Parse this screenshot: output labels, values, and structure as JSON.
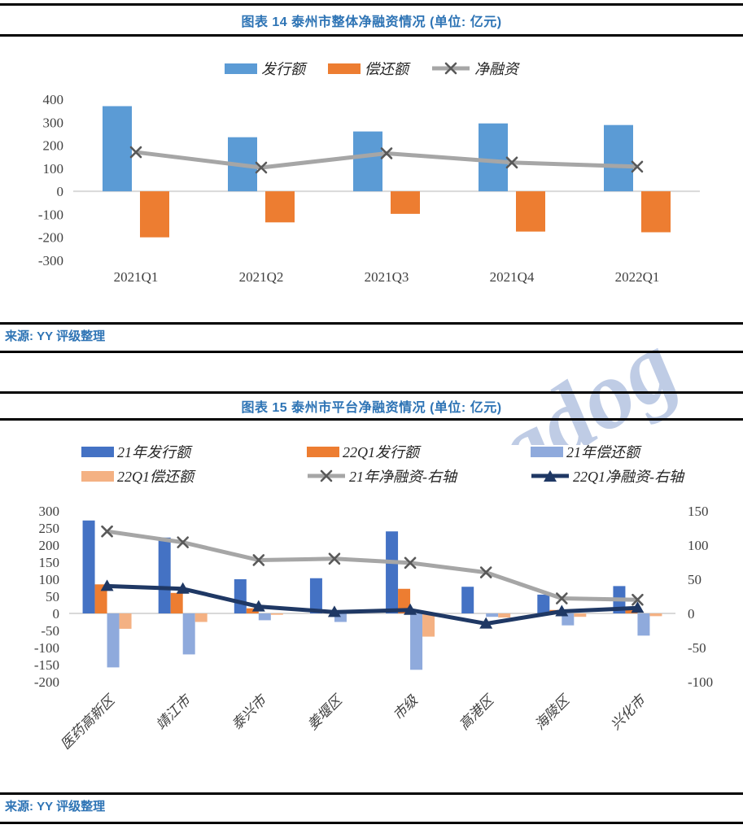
{
  "page": {
    "watermark": "Ratingdog",
    "footers": [
      "来源: YY 评级整理",
      "来源: YY 评级整理"
    ],
    "colors": {
      "title_blue": "#2E74B5",
      "rule_black": "#000000",
      "zero_line": "#D9D9D9",
      "axis_text": "#404040",
      "watermark_blue": "#A9BBDC"
    }
  },
  "chart_data": [
    {
      "id": "chart14",
      "type": "bar",
      "title": "图表 14 泰州市整体净融资情况 (单位: 亿元)",
      "legend_position": "top",
      "grid": false,
      "categories": [
        "2021Q1",
        "2021Q2",
        "2021Q3",
        "2021Q4",
        "2022Q1"
      ],
      "left_axis": {
        "min": -300,
        "max": 400,
        "step": 100
      },
      "series": [
        {
          "name": "发行额",
          "type": "bar",
          "axis": "left",
          "color": "#5B9BD5",
          "values": [
            370,
            235,
            260,
            295,
            288
          ]
        },
        {
          "name": "偿还额",
          "type": "bar",
          "axis": "left",
          "color": "#ED7D31",
          "values": [
            -200,
            -135,
            -98,
            -175,
            -178
          ]
        },
        {
          "name": "净融资",
          "type": "line",
          "axis": "left",
          "color": "#A6A6A6",
          "marker": "x",
          "marker_color": "#595959",
          "values": [
            170,
            103,
            165,
            125,
            107
          ]
        }
      ]
    },
    {
      "id": "chart15",
      "type": "bar",
      "title": "图表 15 泰州市平台净融资情况 (单位: 亿元)",
      "legend_position": "top",
      "grid": false,
      "categories": [
        "医药高新区",
        "靖江市",
        "泰兴市",
        "姜堰区",
        "市级",
        "高港区",
        "海陵区",
        "兴化市"
      ],
      "left_axis": {
        "min": -200,
        "max": 300,
        "step": 50
      },
      "right_axis": {
        "min": -100,
        "max": 150,
        "step": 50
      },
      "series": [
        {
          "name": "21年发行额",
          "type": "bar",
          "axis": "left",
          "color": "#4472C4",
          "values": [
            272,
            222,
            100,
            103,
            240,
            78,
            55,
            80
          ]
        },
        {
          "name": "22Q1发行额",
          "type": "bar",
          "axis": "left",
          "color": "#ED7D31",
          "values": [
            85,
            60,
            15,
            0,
            72,
            0,
            10,
            13
          ]
        },
        {
          "name": "21年偿还额",
          "type": "bar",
          "axis": "left",
          "color": "#8FAADC",
          "values": [
            -158,
            -120,
            -20,
            -25,
            -165,
            -10,
            -35,
            -65
          ]
        },
        {
          "name": "22Q1偿还额",
          "type": "bar",
          "axis": "left",
          "color": "#F4B183",
          "values": [
            -45,
            -25,
            -4,
            0,
            -68,
            -12,
            -10,
            -8
          ]
        },
        {
          "name": "21年净融资-右轴",
          "type": "line",
          "axis": "right",
          "color": "#A6A6A6",
          "marker": "x",
          "marker_color": "#595959",
          "values": [
            120,
            104,
            78,
            80,
            74,
            60,
            22,
            20
          ]
        },
        {
          "name": "22Q1净融资-右轴",
          "type": "line",
          "axis": "right",
          "color": "#1F3864",
          "marker": "triangle",
          "marker_color": "#1F3864",
          "values": [
            40,
            36,
            10,
            2,
            5,
            -15,
            3,
            8
          ]
        }
      ]
    }
  ]
}
